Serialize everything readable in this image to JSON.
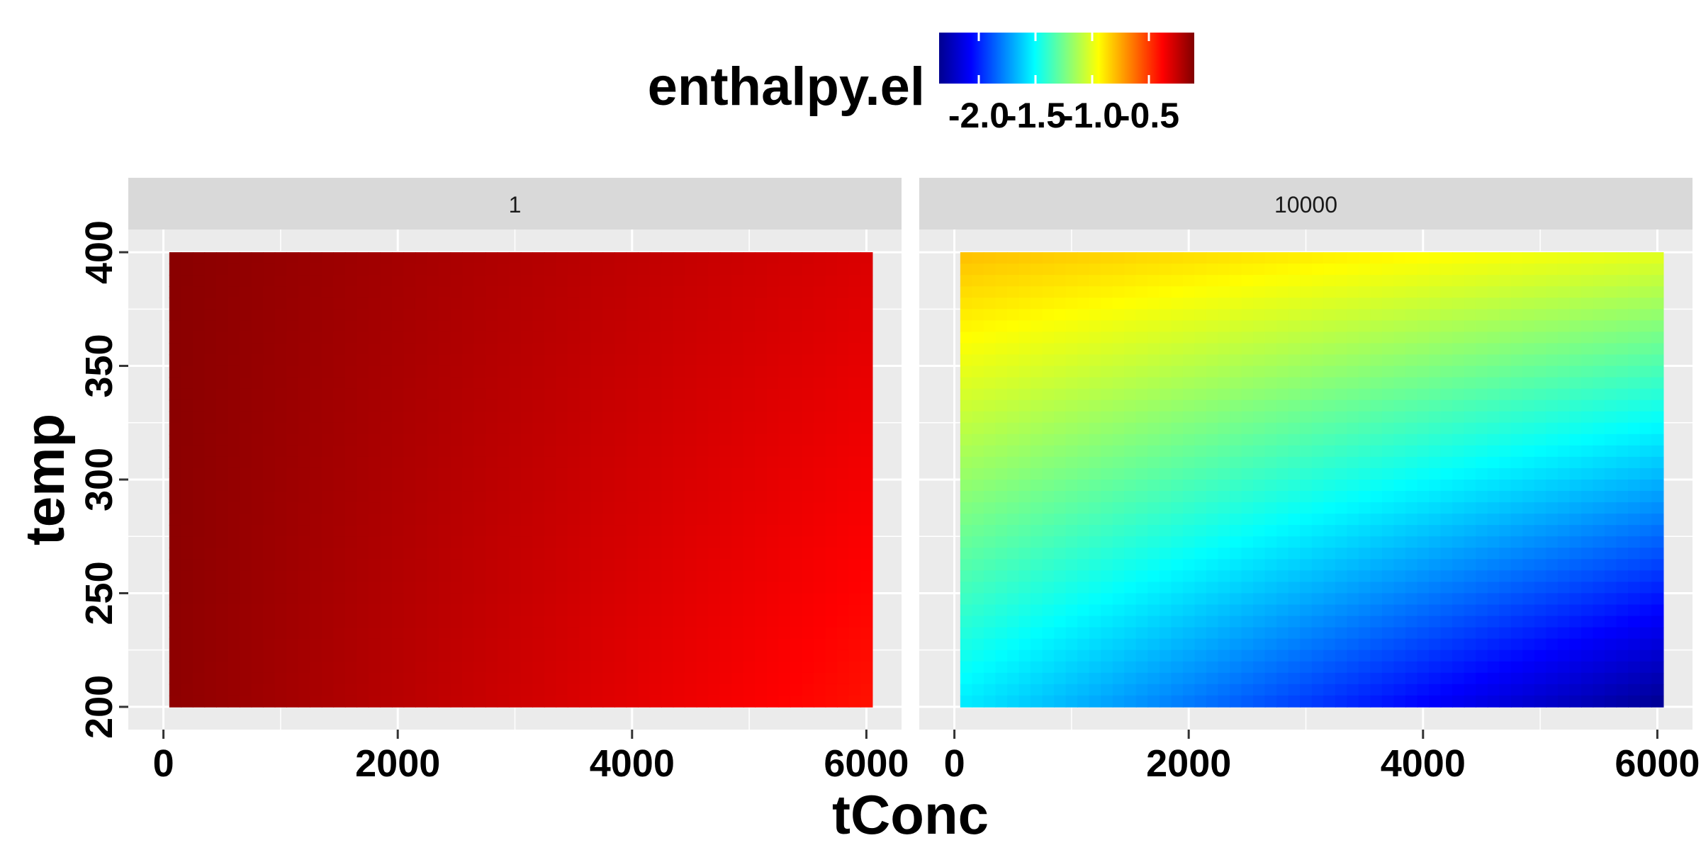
{
  "chart_data": {
    "type": "heatmap",
    "title": "",
    "xlabel": "tConc",
    "ylabel": "temp",
    "legend": {
      "title": "enthalpy.el",
      "placement": "top",
      "ticks": [
        -2.0,
        -1.5,
        -1.0,
        -0.5
      ],
      "tick_labels": [
        "-2.0",
        "-1.5",
        "-1.0",
        "-0.5"
      ],
      "range": [
        -2.35,
        -0.1
      ],
      "colors": [
        "#00008F",
        "#0000FF",
        "#0080FF",
        "#00FFFF",
        "#80FF80",
        "#FFFF00",
        "#FF8000",
        "#FF0000",
        "#800000"
      ]
    },
    "x_ticks": [
      0,
      2000,
      4000,
      6000
    ],
    "x_tick_labels": [
      "0",
      "2000",
      "4000",
      "6000"
    ],
    "y_ticks": [
      200,
      250,
      300,
      350,
      400
    ],
    "y_tick_labels": [
      "200",
      "250",
      "300",
      "350",
      "400"
    ],
    "xlim": [
      -300,
      6300
    ],
    "ylim": [
      190,
      410
    ],
    "x_data_range": [
      50,
      6050
    ],
    "y_data_range": [
      200,
      400
    ],
    "grid": true,
    "panels": [
      {
        "label": "1",
        "corner_values": {
          "x0_y400": -0.12,
          "x6050_y400": -0.3,
          "x0_y200": -0.13,
          "x6050_y200": -0.42
        }
      },
      {
        "label": "10000",
        "corner_values": {
          "x0_y400": -0.8,
          "x6050_y400": -1.0,
          "x0_y200": -1.55,
          "x6050_y200": -2.35
        }
      }
    ]
  }
}
